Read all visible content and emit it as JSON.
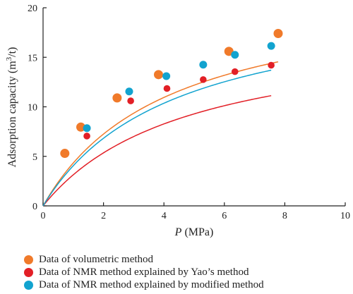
{
  "chart_data": {
    "type": "scatter",
    "xlabel_italic": "P",
    "xlabel_rest": " (MPa)",
    "ylabel_main": "Adsorption capacity (m",
    "ylabel_sup": "3",
    "ylabel_tail": "/t)",
    "xlim": [
      0,
      10
    ],
    "ylim": [
      0,
      20
    ],
    "x_ticks": [
      "0",
      "2",
      "4",
      "6",
      "8",
      "10"
    ],
    "y_ticks": [
      "0",
      "5",
      "10",
      "15",
      "20"
    ],
    "grid": false,
    "legend_position": "bottom",
    "series": [
      {
        "name": "Data of volumetric method",
        "color": "#f07a2a",
        "marker_size": "large",
        "points": [
          [
            0.72,
            5.3
          ],
          [
            1.25,
            7.95
          ],
          [
            2.45,
            10.9
          ],
          [
            3.82,
            13.25
          ],
          [
            6.15,
            15.6
          ],
          [
            7.78,
            17.4
          ]
        ],
        "fit": {
          "a": 22.3,
          "b": 0.415
        }
      },
      {
        "name": "Data of NMR method explained by Yao’s method",
        "color": "#e21f26",
        "marker_size": "small",
        "points": [
          [
            1.45,
            7.05
          ],
          [
            2.9,
            10.6
          ],
          [
            4.1,
            11.85
          ],
          [
            5.3,
            12.75
          ],
          [
            6.35,
            13.55
          ],
          [
            7.55,
            14.2
          ]
        ],
        "fit": {
          "a": 18.2,
          "b": 0.48
        }
      },
      {
        "name": "Data of NMR method explained by modified method",
        "color": "#12a3cf",
        "marker_size": "medium",
        "points": [
          [
            1.45,
            7.85
          ],
          [
            2.85,
            11.55
          ],
          [
            4.08,
            13.1
          ],
          [
            5.3,
            14.25
          ],
          [
            6.35,
            15.25
          ],
          [
            7.55,
            16.15
          ]
        ],
        "fit": {
          "a": 21.5,
          "b": 0.43
        }
      }
    ],
    "legend_order": [
      0,
      1,
      2
    ]
  }
}
